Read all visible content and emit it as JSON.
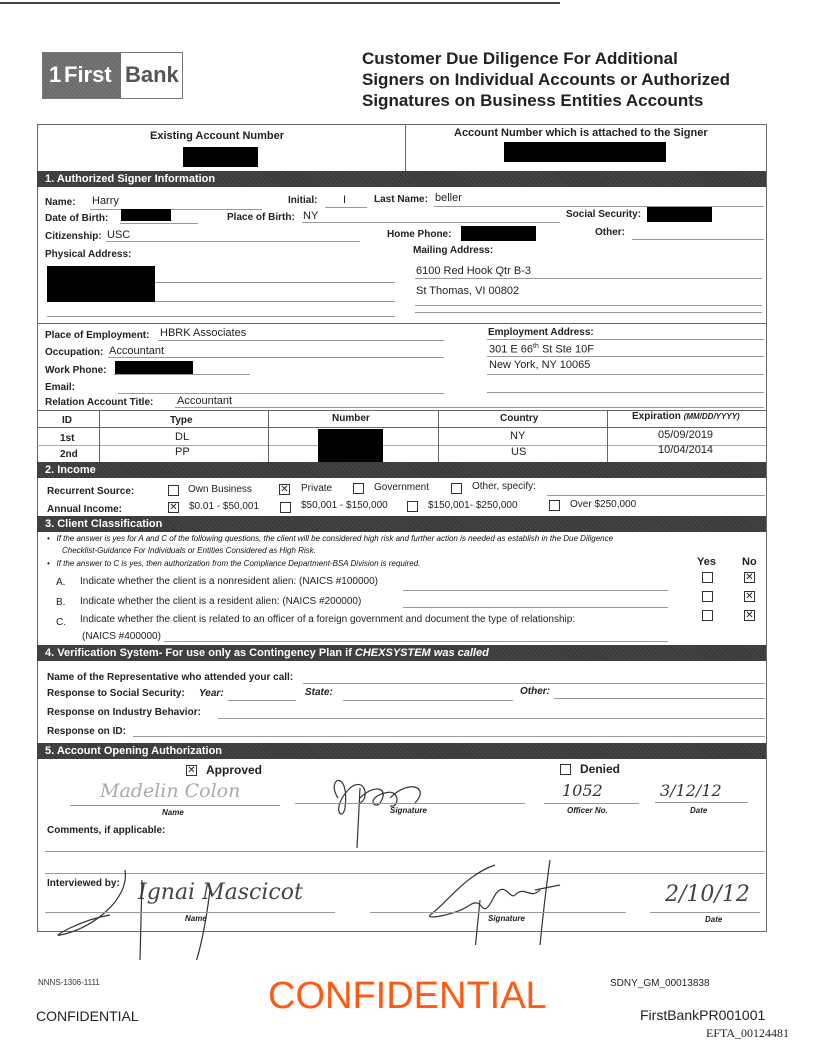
{
  "header": {
    "logo": {
      "number": "1",
      "first": "First",
      "bank": "Bank"
    },
    "title_lines": [
      "Customer Due Diligence For Additional",
      "Signers on Individual Accounts or Authorized",
      "Signatures on Business Entities Accounts"
    ]
  },
  "accounts": {
    "existing_label": "Existing Account Number",
    "attached_label": "Account Number which is attached to the Signer"
  },
  "section1": {
    "title": "1.   Authorized Signer Information",
    "name_label": "Name:",
    "name": "Harry",
    "initial_label": "Initial:",
    "initial": "I",
    "last_name_label": "Last Name:",
    "last_name": "beller",
    "dob_label": "Date of Birth:",
    "pob_label": "Place of Birth:",
    "pob": "NY",
    "ssn_label": "Social Security:",
    "citizenship_label": "Citizenship:",
    "citizenship": "USC",
    "home_phone_label": "Home Phone:",
    "other_label": "Other:",
    "physical_address_label": "Physical Address:",
    "mailing_address_label": "Mailing Address:",
    "mailing_address": [
      "6100 Red Hook Qtr B-3",
      "St Thomas, VI  00802"
    ],
    "employment_label": "Place of Employment:",
    "employment": "HBRK Associates",
    "occupation_label": "Occupation:",
    "occupation": "Accountant",
    "work_phone_label": "Work Phone:",
    "email_label": "Email:",
    "relation_label": "Relation Account Title:",
    "relation": "Accountant",
    "employment_address_label": "Employment Address:",
    "employment_address": {
      "line1_pre": "301 E 66",
      "line1_sup": "th",
      "line1_post": " St Ste 10F",
      "line2": "New York, NY  10065"
    },
    "id_table": {
      "headers": [
        "ID",
        "Type",
        "Number",
        "Country",
        "Expiration"
      ],
      "expiration_format": "(MM/DD/YYYY)",
      "rows": [
        {
          "id": "1st",
          "type": "DL",
          "country": "NY",
          "expiration": "05/09/2019"
        },
        {
          "id": "2nd",
          "type": "PP",
          "country": "US",
          "expiration": "10/04/2014"
        }
      ]
    }
  },
  "section2": {
    "title": "2.   Income",
    "recurrent_label": "Recurrent Source:",
    "recurrent_options": [
      {
        "label": "Own Business",
        "checked": false
      },
      {
        "label": "Private",
        "checked": true
      },
      {
        "label": "Government",
        "checked": false
      },
      {
        "label": "Other, specify:",
        "checked": false
      }
    ],
    "annual_label": "Annual Income:",
    "annual_options": [
      {
        "label": "$0.01 - $50,001",
        "checked": true
      },
      {
        "label": "$50,001 - $150,000",
        "checked": false
      },
      {
        "label": "$150,001- $250,000",
        "checked": false
      },
      {
        "label": "Over $250,000",
        "checked": false
      }
    ]
  },
  "section3": {
    "title": "3.   Client Classification",
    "bullets": [
      "If the answer is yes for A and C of the following questions, the client will be considered high risk and further action is needed as establish in the Due Diligence",
      "Checklist-Guidance For Individuals or Entities Considered as High Risk.",
      "If the answer to C is yes, then authorization from the Compliance Department-BSA Division is required."
    ],
    "yes_label": "Yes",
    "no_label": "No",
    "questions": [
      {
        "letter": "A.",
        "text": "Indicate whether the client is a nonresident alien: (NAICS #100000)",
        "answer": "No"
      },
      {
        "letter": "B.",
        "text": "Indicate whether the client is a resident alien: (NAICS #200000)",
        "answer": "No"
      },
      {
        "letter": "C.",
        "text": "Indicate whether the client is related to an officer of a foreign government and document the type of relationship:",
        "text2": "(NAICS #400000)",
        "answer": "No"
      }
    ]
  },
  "section4": {
    "title_pre": "4.   Verification System- For use only as Contingency Plan if ",
    "title_em": "CHEXSYSTEM was called",
    "rep_label": "Name of the Representative who attended your call:",
    "ssn_label": "Response to Social Security:",
    "year_label": "Year:",
    "state_label": "State:",
    "other_label": "Other:",
    "industry_label": "Response on Industry Behavior:",
    "id_label": "Response on ID:"
  },
  "section5": {
    "title": "5.   Account Opening Authorization",
    "approved_label": "Approved",
    "approved": true,
    "denied_label": "Denied",
    "denied": false,
    "name_caption": "Name",
    "signature_caption": "Signature",
    "officer_caption": "Officer No.",
    "date_caption": "Date",
    "approver_name": "Madelin Colon",
    "officer_no": "1052",
    "approval_date": "3/12/12",
    "comments_label": "Comments, if applicable:",
    "interviewed_label": "Interviewed by:",
    "interviewer_name": "Ignai Mascicot",
    "interview_date": "2/10/12"
  },
  "footer": {
    "form_code": "NNNS-1306-1111",
    "stamp": "CONFIDENTIAL",
    "stamp_color": "#ff5a14",
    "confidential": "CONFIDENTIAL",
    "sdny": "SDNY_GM_00013838",
    "bates": "FirstBankPR001001",
    "efta": "EFTA_00124481"
  }
}
